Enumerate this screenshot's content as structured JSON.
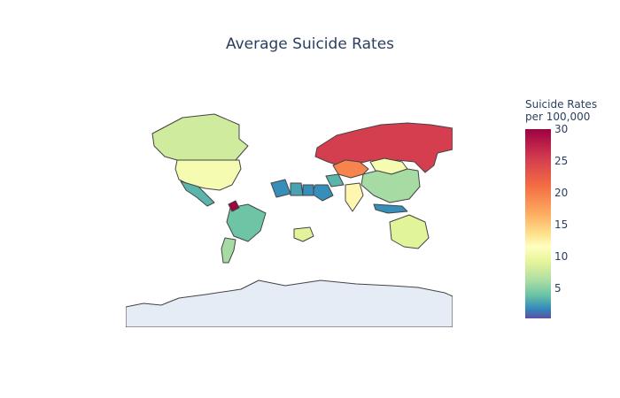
{
  "title": "Average Suicide Rates",
  "colorbar": {
    "title_line1": "Suicide Rates",
    "title_line2": "per 100,000",
    "range": [
      0.3,
      30
    ],
    "colorscale": "Spectral (reversed)",
    "ticks": [
      {
        "label": "30",
        "value": 30
      },
      {
        "label": "25",
        "value": 25
      },
      {
        "label": "20",
        "value": 20
      },
      {
        "label": "15",
        "value": 15
      },
      {
        "label": "10",
        "value": 10
      },
      {
        "label": "5",
        "value": 5
      }
    ]
  },
  "colors": {
    "land_no_data": "#e5ecf6",
    "ocean": "#ffffff",
    "border": "#444444"
  },
  "chart_data": {
    "type": "choropleth",
    "projection": "natural earth",
    "z_label": "Suicide Rates per 100,000",
    "regions": [
      {
        "name": "Russia",
        "value": 27
      },
      {
        "name": "Kazakhstan",
        "value": 23
      },
      {
        "name": "Mongolia",
        "value": 14
      },
      {
        "name": "China",
        "value": 9
      },
      {
        "name": "United States",
        "value": 14
      },
      {
        "name": "Canada",
        "value": 11
      },
      {
        "name": "Mexico",
        "value": 5
      },
      {
        "name": "Brazil",
        "value": 6
      },
      {
        "name": "Argentina",
        "value": 9
      },
      {
        "name": "Guyana",
        "value": 30
      },
      {
        "name": "Australia",
        "value": 12
      },
      {
        "name": "India",
        "value": 16
      },
      {
        "name": "Iran",
        "value": 5
      },
      {
        "name": "Saudi Arabia",
        "value": 3
      },
      {
        "name": "Algeria",
        "value": 3
      },
      {
        "name": "Libya",
        "value": 4
      },
      {
        "name": "Egypt",
        "value": 3
      },
      {
        "name": "South Africa",
        "value": 12
      },
      {
        "name": "Indonesia",
        "value": 3
      },
      {
        "name": "Antarctica",
        "value": null
      }
    ]
  }
}
